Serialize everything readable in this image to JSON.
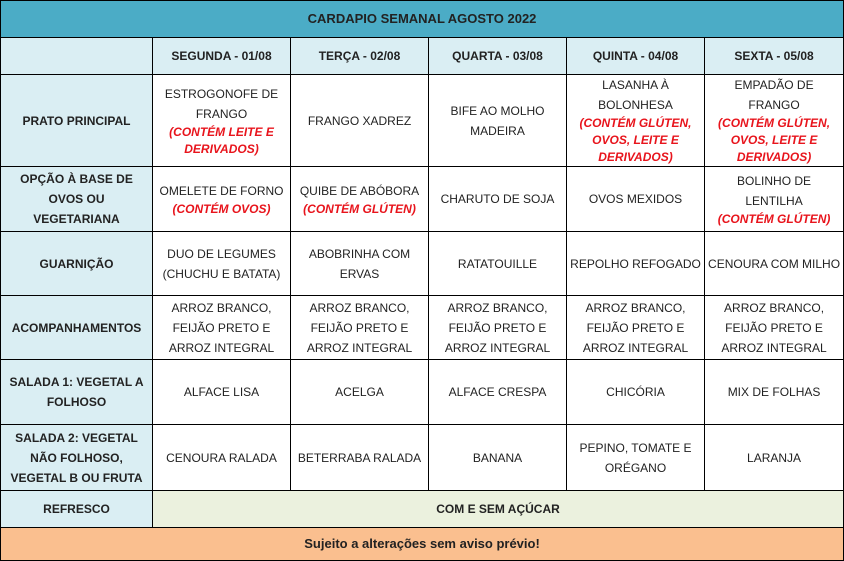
{
  "title": "CARDAPIO SEMANAL AGOSTO 2022",
  "days": [
    "SEGUNDA - 01/08",
    "TERÇA - 02/08",
    "QUARTA - 03/08",
    "QUINTA - 04/08",
    "SEXTA - 05/08"
  ],
  "rows": [
    {
      "label": "PRATO PRINCIPAL",
      "cells": [
        {
          "dish": "ESTROGONOFE DE FRANGO",
          "allergen": "(CONTÉM LEITE E DERIVADOS)"
        },
        {
          "dish": "FRANGO XADREZ",
          "allergen": ""
        },
        {
          "dish": "BIFE AO MOLHO MADEIRA",
          "allergen": ""
        },
        {
          "dish": "LASANHA À BOLONHESA",
          "allergen": "(CONTÉM GLÚTEN, OVOS, LEITE E DERIVADOS)"
        },
        {
          "dish": "EMPADÃO DE FRANGO",
          "allergen": "(CONTÉM GLÚTEN, OVOS, LEITE E DERIVADOS)"
        }
      ]
    },
    {
      "label": "OPÇÃO À BASE DE OVOS OU VEGETARIANA",
      "cells": [
        {
          "dish": "OMELETE DE FORNO",
          "allergen": "(CONTÉM OVOS)"
        },
        {
          "dish": "QUIBE DE ABÓBORA",
          "allergen": "(CONTÉM GLÚTEN)"
        },
        {
          "dish": "CHARUTO DE SOJA",
          "allergen": ""
        },
        {
          "dish": "OVOS MEXIDOS",
          "allergen": ""
        },
        {
          "dish": "BOLINHO DE LENTILHA",
          "allergen": "(CONTÉM GLÚTEN)"
        }
      ]
    },
    {
      "label": "GUARNIÇÃO",
      "cells": [
        {
          "dish": "DUO DE LEGUMES (CHUCHU E BATATA)",
          "allergen": ""
        },
        {
          "dish": "ABOBRINHA COM ERVAS",
          "allergen": ""
        },
        {
          "dish": "RATATOUILLE",
          "allergen": ""
        },
        {
          "dish": "REPOLHO REFOGADO",
          "allergen": ""
        },
        {
          "dish": "CENOURA COM MILHO",
          "allergen": ""
        }
      ]
    },
    {
      "label": "ACOMPANHAMENTOS",
      "cells": [
        {
          "dish": "ARROZ BRANCO, FEIJÃO PRETO E ARROZ INTEGRAL",
          "allergen": ""
        },
        {
          "dish": "ARROZ BRANCO, FEIJÃO PRETO E ARROZ INTEGRAL",
          "allergen": ""
        },
        {
          "dish": "ARROZ BRANCO, FEIJÃO PRETO E ARROZ INTEGRAL",
          "allergen": ""
        },
        {
          "dish": "ARROZ BRANCO, FEIJÃO PRETO E ARROZ INTEGRAL",
          "allergen": ""
        },
        {
          "dish": "ARROZ BRANCO, FEIJÃO PRETO E ARROZ INTEGRAL",
          "allergen": ""
        }
      ]
    },
    {
      "label": "SALADA 1: VEGETAL A FOLHOSO",
      "cells": [
        {
          "dish": "ALFACE LISA",
          "allergen": ""
        },
        {
          "dish": "ACELGA",
          "allergen": ""
        },
        {
          "dish": "ALFACE CRESPA",
          "allergen": ""
        },
        {
          "dish": "CHICÓRIA",
          "allergen": ""
        },
        {
          "dish": "MIX DE FOLHAS",
          "allergen": ""
        }
      ]
    },
    {
      "label": "SALADA 2: VEGETAL NÃO FOLHOSO, VEGETAL B OU FRUTA",
      "cells": [
        {
          "dish": "CENOURA RALADA",
          "allergen": ""
        },
        {
          "dish": "BETERRABA RALADA",
          "allergen": ""
        },
        {
          "dish": "BANANA",
          "allergen": ""
        },
        {
          "dish": "PEPINO, TOMATE E ORÉGANO",
          "allergen": ""
        },
        {
          "dish": "LARANJA",
          "allergen": ""
        }
      ]
    }
  ],
  "refresco": {
    "label": "REFRESCO",
    "value": "COM E SEM AÇÚCAR"
  },
  "footer": "Sujeito a alterações sem aviso prévio!",
  "colors": {
    "title": "#4bacc6",
    "header": "#daeef3",
    "refresco": "#ebf1de",
    "footer": "#fabf8f",
    "allergen": "#e8141c"
  }
}
